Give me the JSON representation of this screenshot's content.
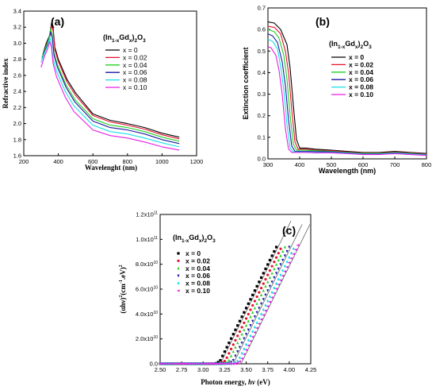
{
  "colors": [
    "#000000",
    "#e8112d",
    "#22d022",
    "#1a1aa0",
    "#19dfe6",
    "#e61de6"
  ],
  "chart_data": [
    {
      "panel": "(a)",
      "type": "line",
      "xlabel": "Wavelenght (nm)",
      "ylabel": "Refractive index",
      "xlim": [
        200,
        1200
      ],
      "ylim": [
        1.6,
        3.4
      ],
      "xticks": [
        200,
        400,
        600,
        800,
        1000,
        1200
      ],
      "yticks": [
        1.6,
        1.8,
        2.0,
        2.2,
        2.4,
        2.6,
        2.8,
        3.0,
        3.2,
        3.4
      ],
      "xtick_labels": [
        "200",
        "400",
        "600",
        "800",
        "1000",
        "1200"
      ],
      "ytick_labels": [
        "1.6",
        "1.8",
        "2.0",
        "2.2",
        "2.4",
        "2.6",
        "2.8",
        "3.0",
        "3.2",
        "3.4"
      ],
      "legend_title_parts": [
        "(In",
        "1-x",
        "Gd",
        "x",
        ")",
        "2",
        "O",
        "3"
      ],
      "legend_position": "right",
      "series": [
        {
          "name": "x = 0",
          "x": [
            310,
            330,
            350,
            360,
            370,
            380,
            400,
            450,
            500,
            600,
            700,
            800,
            900,
            1000,
            1100
          ],
          "y": [
            2.86,
            3.0,
            3.1,
            3.25,
            3.18,
            2.95,
            2.8,
            2.55,
            2.38,
            2.12,
            2.04,
            2.0,
            1.95,
            1.88,
            1.83
          ]
        },
        {
          "name": "x = 0.02",
          "x": [
            310,
            330,
            350,
            360,
            370,
            380,
            400,
            450,
            500,
            600,
            700,
            800,
            900,
            1000,
            1100
          ],
          "y": [
            2.84,
            2.98,
            3.08,
            3.22,
            3.15,
            2.92,
            2.77,
            2.52,
            2.35,
            2.1,
            2.02,
            1.98,
            1.93,
            1.86,
            1.81
          ]
        },
        {
          "name": "x = 0.04",
          "x": [
            305,
            325,
            345,
            355,
            365,
            375,
            395,
            445,
            495,
            600,
            700,
            800,
            900,
            1000,
            1100
          ],
          "y": [
            2.82,
            2.94,
            3.05,
            3.18,
            3.1,
            2.88,
            2.73,
            2.48,
            2.3,
            2.06,
            1.98,
            1.95,
            1.9,
            1.83,
            1.78
          ]
        },
        {
          "name": "x = 0.06",
          "x": [
            305,
            325,
            345,
            355,
            365,
            375,
            395,
            445,
            495,
            600,
            700,
            800,
            900,
            1000,
            1100
          ],
          "y": [
            2.8,
            2.92,
            3.02,
            3.14,
            3.07,
            2.85,
            2.7,
            2.45,
            2.27,
            2.03,
            1.95,
            1.92,
            1.87,
            1.8,
            1.75
          ]
        },
        {
          "name": "x = 0.08",
          "x": [
            300,
            320,
            340,
            350,
            360,
            370,
            390,
            440,
            490,
            600,
            700,
            800,
            900,
            1000,
            1100
          ],
          "y": [
            2.76,
            2.88,
            2.98,
            3.08,
            3.0,
            2.8,
            2.65,
            2.4,
            2.22,
            1.98,
            1.9,
            1.87,
            1.82,
            1.76,
            1.71
          ]
        },
        {
          "name": "x = 0.10",
          "x": [
            300,
            320,
            340,
            350,
            360,
            370,
            390,
            440,
            490,
            600,
            700,
            800,
            900,
            1000,
            1100
          ],
          "y": [
            2.7,
            2.84,
            2.94,
            3.02,
            2.95,
            2.74,
            2.58,
            2.33,
            2.15,
            1.92,
            1.85,
            1.82,
            1.77,
            1.71,
            1.67
          ]
        }
      ]
    },
    {
      "panel": "(b)",
      "type": "line",
      "xlabel": "Wavelength (nm)",
      "ylabel": "Extinction coefficient",
      "xlim": [
        300,
        800
      ],
      "ylim": [
        0.0,
        0.7
      ],
      "xticks": [
        300,
        400,
        500,
        600,
        700,
        800
      ],
      "yticks": [
        0.0,
        0.1,
        0.2,
        0.3,
        0.4,
        0.5,
        0.6,
        0.7
      ],
      "xtick_labels": [
        "300",
        "400",
        "500",
        "600",
        "700",
        "800"
      ],
      "ytick_labels": [
        "0.0",
        "0.1",
        "0.2",
        "0.3",
        "0.4",
        "0.5",
        "0.6",
        "0.7"
      ],
      "legend_title_parts": [
        "(In",
        "1-x",
        "Gd",
        "x",
        ")",
        "2",
        "O",
        "3"
      ],
      "legend_position": "right",
      "series": [
        {
          "name": "x = 0",
          "x": [
            300,
            320,
            340,
            360,
            370,
            380,
            390,
            400,
            420,
            450,
            500,
            550,
            600,
            650,
            700,
            750,
            800
          ],
          "y": [
            0.635,
            0.63,
            0.6,
            0.53,
            0.42,
            0.25,
            0.09,
            0.05,
            0.05,
            0.045,
            0.04,
            0.035,
            0.03,
            0.03,
            0.035,
            0.03,
            0.025
          ]
        },
        {
          "name": "x = 0.02",
          "x": [
            300,
            320,
            340,
            355,
            365,
            375,
            385,
            395,
            420,
            450,
            500,
            550,
            600,
            650,
            700,
            750,
            800
          ],
          "y": [
            0.615,
            0.61,
            0.58,
            0.5,
            0.4,
            0.23,
            0.08,
            0.045,
            0.045,
            0.04,
            0.038,
            0.032,
            0.028,
            0.028,
            0.032,
            0.028,
            0.023
          ]
        },
        {
          "name": "x = 0.04",
          "x": [
            300,
            320,
            335,
            350,
            360,
            370,
            380,
            390,
            420,
            450,
            500,
            550,
            600,
            650,
            700,
            750,
            800
          ],
          "y": [
            0.6,
            0.59,
            0.56,
            0.48,
            0.37,
            0.2,
            0.07,
            0.04,
            0.04,
            0.038,
            0.035,
            0.03,
            0.026,
            0.026,
            0.03,
            0.026,
            0.021
          ]
        },
        {
          "name": "x = 0.06",
          "x": [
            300,
            315,
            330,
            345,
            355,
            365,
            375,
            385,
            420,
            450,
            500,
            550,
            600,
            650,
            700,
            750,
            800
          ],
          "y": [
            0.58,
            0.57,
            0.54,
            0.45,
            0.34,
            0.18,
            0.06,
            0.035,
            0.035,
            0.034,
            0.033,
            0.028,
            0.024,
            0.024,
            0.028,
            0.024,
            0.02
          ]
        },
        {
          "name": "x = 0.08",
          "x": [
            300,
            315,
            330,
            340,
            350,
            360,
            370,
            380,
            420,
            450,
            500,
            550,
            600,
            650,
            700,
            750,
            800
          ],
          "y": [
            0.555,
            0.545,
            0.51,
            0.43,
            0.32,
            0.16,
            0.05,
            0.032,
            0.032,
            0.03,
            0.03,
            0.026,
            0.022,
            0.022,
            0.026,
            0.022,
            0.018
          ]
        },
        {
          "name": "x = 0.10",
          "x": [
            300,
            310,
            325,
            335,
            345,
            355,
            365,
            375,
            420,
            450,
            500,
            550,
            600,
            650,
            700,
            750,
            800
          ],
          "y": [
            0.52,
            0.515,
            0.48,
            0.41,
            0.3,
            0.14,
            0.045,
            0.03,
            0.03,
            0.028,
            0.028,
            0.024,
            0.02,
            0.02,
            0.024,
            0.02,
            0.016
          ]
        }
      ]
    },
    {
      "panel": "(c)",
      "type": "scatter",
      "xlabel_parts": [
        "Photon energy, ",
        "hv",
        " (eV)"
      ],
      "ylabel_parts": [
        "(αhν)",
        "2",
        "(cm",
        "-1",
        ".eV)",
        "2"
      ],
      "xlim": [
        2.5,
        4.25
      ],
      "ylim": [
        0,
        120000000000.0
      ],
      "xticks": [
        2.5,
        2.75,
        3.0,
        3.25,
        3.5,
        3.75,
        4.0,
        4.25
      ],
      "yticks": [
        0,
        20000000000.0,
        40000000000.0,
        60000000000.0,
        80000000000.0,
        100000000000.0,
        120000000000.0
      ],
      "xtick_labels": [
        "2.50",
        "2.75",
        "3.00",
        "3.25",
        "3.50",
        "3.75",
        "4.00",
        "4.25"
      ],
      "ytick_labels": [
        [
          "0.0",
          ""
        ],
        [
          "2.0x10",
          "10"
        ],
        [
          "4.0x10",
          "10"
        ],
        [
          "6.0x10",
          "10"
        ],
        [
          "8.0x10",
          "10"
        ],
        [
          "1.0x10",
          "11"
        ],
        [
          "1.2x10",
          "11"
        ]
      ],
      "legend_title_parts": [
        "(In",
        "1-x",
        "Gd",
        "x",
        ")",
        "2",
        "O",
        "3"
      ],
      "legend_position": "left",
      "markers": [
        "square",
        "circle",
        "triangle-up",
        "triangle-down",
        "diamond",
        "triangle-left"
      ],
      "series": [
        {
          "name": "x = 0",
          "Eg": 3.2,
          "x_end": 3.85
        },
        {
          "name": "x = 0.02",
          "Eg": 3.26,
          "x_end": 3.9
        },
        {
          "name": "x = 0.04",
          "Eg": 3.3,
          "x_end": 3.95
        },
        {
          "name": "x = 0.06",
          "Eg": 3.35,
          "x_end": 4.0
        },
        {
          "name": "x = 0.08",
          "Eg": 3.41,
          "x_end": 4.07
        },
        {
          "name": "x = 0.10",
          "Eg": 3.44,
          "x_end": 4.12
        }
      ],
      "slope": 140000000000.0,
      "fit_lines": [
        {
          "x0": 3.2,
          "x1": 4.02
        },
        {
          "x0": 3.35,
          "x1": 4.15
        },
        {
          "x0": 3.44,
          "x1": 4.24
        }
      ]
    }
  ]
}
